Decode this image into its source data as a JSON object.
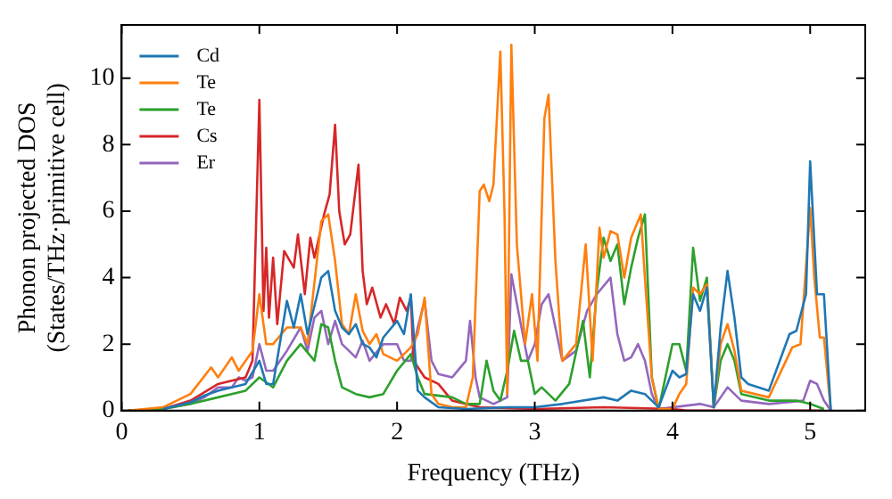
{
  "chart_data": {
    "type": "line",
    "xlabel": "Frequency (THz)",
    "ylabel": "Phonon projected DOS\n(States/THz·primitive cell)",
    "xlim": [
      0,
      5.4
    ],
    "ylim": [
      0,
      11.6
    ],
    "xticks": [
      0,
      1,
      2,
      3,
      4,
      5
    ],
    "yticks": [
      0,
      2,
      4,
      6,
      8,
      10
    ],
    "grid": false,
    "legend": "top left",
    "marker": "none",
    "line_style": "solid",
    "series": [
      {
        "name": "Cd",
        "color": "#1f77b4",
        "x": [
          0.3,
          0.5,
          0.6,
          0.7,
          0.8,
          0.9,
          1.0,
          1.05,
          1.1,
          1.2,
          1.25,
          1.3,
          1.35,
          1.45,
          1.5,
          1.55,
          1.6,
          1.65,
          1.7,
          1.75,
          1.8,
          1.85,
          1.9,
          2.0,
          2.05,
          2.1,
          2.15,
          2.2,
          2.3,
          2.5,
          2.8,
          3.0,
          3.2,
          3.5,
          3.6,
          3.7,
          3.8,
          3.9,
          4.0,
          4.05,
          4.1,
          4.15,
          4.2,
          4.25,
          4.3,
          4.35,
          4.4,
          4.45,
          4.5,
          4.55,
          4.7,
          4.85,
          4.9,
          4.97,
          5.0,
          5.05,
          5.1,
          5.15
        ],
        "values": [
          0.05,
          0.25,
          0.45,
          0.6,
          0.7,
          0.8,
          1.5,
          0.8,
          0.8,
          3.3,
          2.5,
          3.5,
          2.3,
          4.0,
          4.2,
          3.0,
          2.5,
          2.3,
          2.6,
          2.0,
          1.9,
          1.6,
          2.2,
          2.7,
          2.3,
          3.5,
          0.6,
          0.4,
          0.1,
          0.05,
          0.1,
          0.1,
          0.2,
          0.4,
          0.3,
          0.6,
          0.5,
          0.1,
          1.2,
          1.0,
          1.1,
          3.5,
          3.0,
          3.7,
          0.1,
          2.5,
          4.2,
          2.8,
          1.0,
          0.8,
          0.6,
          2.3,
          2.4,
          3.5,
          7.5,
          3.5,
          3.5,
          0
        ]
      },
      {
        "name": "Te",
        "color": "#ff7f0e",
        "x": [
          0.05,
          0.3,
          0.5,
          0.65,
          0.7,
          0.8,
          0.85,
          0.95,
          1.0,
          1.05,
          1.1,
          1.2,
          1.3,
          1.35,
          1.45,
          1.5,
          1.55,
          1.6,
          1.65,
          1.7,
          1.75,
          1.8,
          1.85,
          1.9,
          2.0,
          2.05,
          2.1,
          2.15,
          2.2,
          2.25,
          2.3,
          2.4,
          2.5,
          2.55,
          2.6,
          2.63,
          2.67,
          2.7,
          2.75,
          2.78,
          2.8,
          2.83,
          2.87,
          2.93,
          2.98,
          3.02,
          3.07,
          3.1,
          3.15,
          3.2,
          3.3,
          3.37,
          3.42,
          3.47,
          3.5,
          3.55,
          3.6,
          3.65,
          3.7,
          3.77,
          3.8,
          3.85,
          3.9,
          4.0,
          4.05,
          4.1,
          4.15,
          4.2,
          4.25,
          4.3,
          4.35,
          4.4,
          4.45,
          4.5,
          4.7,
          4.87,
          4.93,
          5.0,
          5.03,
          5.07,
          5.1,
          5.15
        ],
        "values": [
          0,
          0.1,
          0.5,
          1.3,
          1.0,
          1.6,
          1.2,
          1.8,
          3.5,
          2.0,
          2.0,
          2.5,
          2.5,
          2.0,
          5.7,
          5.9,
          4.5,
          2.6,
          2.3,
          3.5,
          2.4,
          2.0,
          2.3,
          1.7,
          1.5,
          1.7,
          1.9,
          2.3,
          3.4,
          0.5,
          0.2,
          0.1,
          0.1,
          1.0,
          6.6,
          6.8,
          6.3,
          6.8,
          10.8,
          6.0,
          0.5,
          11.0,
          5.0,
          2.0,
          3.5,
          1.5,
          8.8,
          9.5,
          4.5,
          1.5,
          2.0,
          5.0,
          1.5,
          5.5,
          4.6,
          5.4,
          5.3,
          4.0,
          5.2,
          5.9,
          4.0,
          1.0,
          0.05,
          0.05,
          0.5,
          0.8,
          3.7,
          3.5,
          3.8,
          0.1,
          2.0,
          2.6,
          1.8,
          0.6,
          0.4,
          1.9,
          2.0,
          6.1,
          4.0,
          2.2,
          2.2,
          0
        ]
      },
      {
        "name": "Te",
        "color": "#2ca02c",
        "x": [
          0.05,
          0.3,
          0.5,
          0.7,
          0.9,
          1.0,
          1.1,
          1.2,
          1.3,
          1.4,
          1.45,
          1.5,
          1.55,
          1.6,
          1.7,
          1.8,
          1.9,
          2.0,
          2.1,
          2.15,
          2.2,
          2.4,
          2.5,
          2.6,
          2.65,
          2.7,
          2.75,
          2.8,
          2.85,
          2.9,
          2.95,
          3.0,
          3.05,
          3.1,
          3.15,
          3.25,
          3.35,
          3.4,
          3.45,
          3.5,
          3.55,
          3.6,
          3.65,
          3.7,
          3.75,
          3.8,
          3.85,
          3.9,
          4.0,
          4.05,
          4.1,
          4.15,
          4.2,
          4.25,
          4.3,
          4.35,
          4.4,
          4.45,
          4.5,
          4.7,
          4.9,
          5.0,
          5.1
        ],
        "values": [
          0,
          0.05,
          0.2,
          0.4,
          0.6,
          1.0,
          0.7,
          1.5,
          2.0,
          1.5,
          2.6,
          2.5,
          1.5,
          0.7,
          0.5,
          0.4,
          0.5,
          1.2,
          1.7,
          1.0,
          0.5,
          0.4,
          0.2,
          0.2,
          1.5,
          0.6,
          0.3,
          1.2,
          2.4,
          1.5,
          1.5,
          0.5,
          0.7,
          0.5,
          0.3,
          0.8,
          2.7,
          1.0,
          3.6,
          5.2,
          4.5,
          5.0,
          3.2,
          4.3,
          5.2,
          5.9,
          1.0,
          0.05,
          2.0,
          2.0,
          1.2,
          4.9,
          3.3,
          4.0,
          0.1,
          1.5,
          2.0,
          1.5,
          0.5,
          0.3,
          0.3,
          0.2,
          0.05
        ]
      },
      {
        "name": "Cs",
        "color": "#d62728",
        "x": [
          0.05,
          0.3,
          0.5,
          0.7,
          0.9,
          0.95,
          1.0,
          1.03,
          1.05,
          1.07,
          1.1,
          1.13,
          1.18,
          1.25,
          1.28,
          1.33,
          1.37,
          1.4,
          1.47,
          1.51,
          1.55,
          1.58,
          1.62,
          1.66,
          1.72,
          1.75,
          1.78,
          1.82,
          1.88,
          1.92,
          1.98,
          2.02,
          2.07,
          2.1,
          2.12,
          2.2,
          2.3,
          2.4,
          2.6,
          3.0,
          3.5,
          4.0,
          4.1,
          5.1
        ],
        "values": [
          0,
          0.05,
          0.3,
          0.8,
          1.0,
          1.5,
          9.35,
          3.0,
          4.9,
          2.8,
          4.6,
          2.6,
          4.8,
          4.3,
          5.3,
          3.5,
          5.2,
          4.6,
          5.9,
          6.5,
          8.6,
          6.0,
          5.0,
          5.3,
          7.4,
          4.2,
          3.2,
          3.7,
          2.8,
          3.2,
          2.6,
          3.4,
          3.0,
          3.4,
          1.5,
          1.0,
          0.8,
          0.3,
          0.1,
          0.05,
          0.1,
          0.05,
          0,
          0
        ]
      },
      {
        "name": "Er",
        "color": "#9467bd",
        "x": [
          0.05,
          0.3,
          0.5,
          0.6,
          0.7,
          0.8,
          0.85,
          0.9,
          0.95,
          1.0,
          1.05,
          1.1,
          1.2,
          1.3,
          1.35,
          1.4,
          1.45,
          1.5,
          1.55,
          1.6,
          1.7,
          1.75,
          1.8,
          1.9,
          2.0,
          2.05,
          2.1,
          2.15,
          2.2,
          2.25,
          2.3,
          2.4,
          2.5,
          2.53,
          2.57,
          2.6,
          2.7,
          2.8,
          2.83,
          2.88,
          2.95,
          3.0,
          3.05,
          3.1,
          3.15,
          3.2,
          3.3,
          3.38,
          3.45,
          3.55,
          3.6,
          3.65,
          3.7,
          3.75,
          3.8,
          3.85,
          3.9,
          4.0,
          4.2,
          4.3,
          4.35,
          4.4,
          4.5,
          4.7,
          4.95,
          5.0,
          5.05,
          5.1,
          5.15
        ],
        "values": [
          0,
          0.05,
          0.2,
          0.4,
          0.7,
          0.7,
          1.0,
          0.9,
          1.0,
          2.0,
          1.2,
          1.2,
          1.8,
          2.5,
          1.8,
          2.8,
          3.0,
          2.0,
          2.7,
          2.0,
          1.6,
          2.1,
          1.5,
          2.0,
          2.0,
          1.5,
          1.5,
          2.5,
          3.3,
          1.5,
          1.1,
          1.0,
          1.5,
          2.7,
          1.0,
          0.4,
          0.2,
          0.4,
          4.1,
          3.0,
          1.5,
          2.0,
          3.2,
          3.5,
          2.5,
          1.5,
          1.8,
          3.0,
          3.5,
          4.0,
          2.3,
          1.5,
          1.6,
          2.0,
          1.5,
          0.5,
          0.05,
          0.1,
          0.2,
          0.1,
          0.4,
          0.7,
          0.3,
          0.2,
          0.3,
          0.9,
          0.8,
          0.3,
          0
        ]
      }
    ]
  }
}
